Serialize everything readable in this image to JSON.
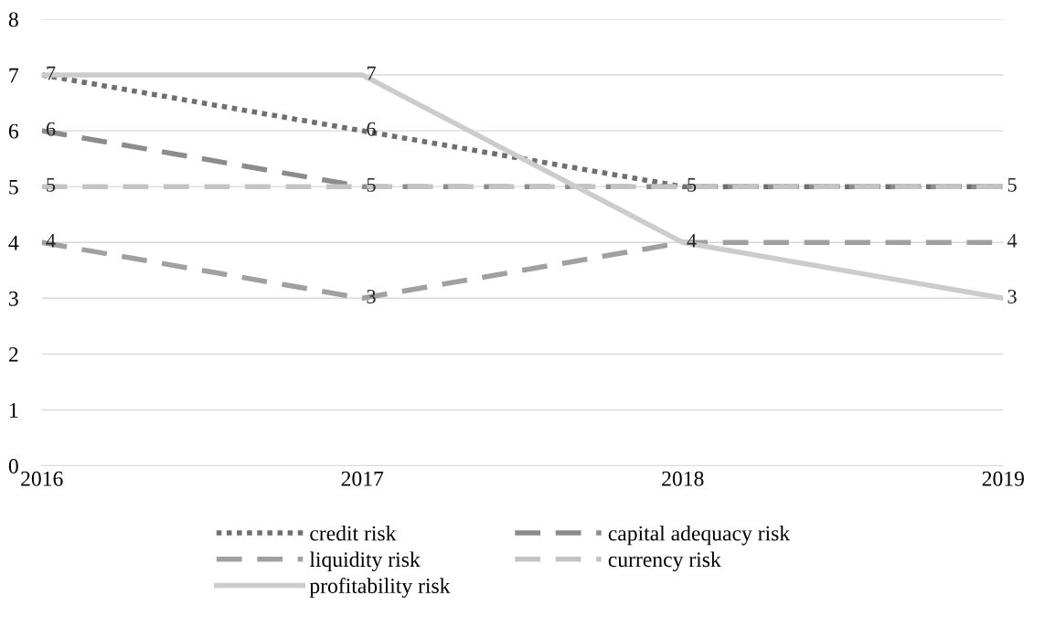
{
  "chart_data": {
    "type": "line",
    "categories": [
      "2016",
      "2017",
      "2018",
      "2019"
    ],
    "series": [
      {
        "name": "credit risk",
        "color": "#6f6f6f",
        "values": [
          7,
          6,
          5,
          5
        ],
        "line_style": "dotted",
        "value_labels": [
          "7",
          "6",
          "5",
          "5"
        ]
      },
      {
        "name": "capital adequacy risk",
        "color": "#8c8c8c",
        "values": [
          6,
          5,
          5,
          5
        ],
        "line_style": "dashed",
        "value_labels": [
          "6",
          "5",
          null,
          null
        ]
      },
      {
        "name": "liquidity risk",
        "color": "#a0a0a0",
        "values": [
          4,
          3,
          4,
          4
        ],
        "line_style": "dashed",
        "value_labels": [
          "4",
          "3",
          "4",
          "4"
        ]
      },
      {
        "name": "currency risk",
        "color": "#c4c4c4",
        "values": [
          5,
          5,
          5,
          5
        ],
        "line_style": "dashed",
        "value_labels": [
          "5",
          null,
          null,
          null
        ]
      },
      {
        "name": "profitability risk",
        "color": "#cccccc",
        "values": [
          7,
          7,
          4,
          3
        ],
        "line_style": "solid",
        "value_labels": [
          null,
          "7",
          null,
          "3"
        ]
      }
    ],
    "ylim": [
      0,
      8
    ],
    "yticks": [
      0,
      1,
      2,
      3,
      4,
      5,
      6,
      7,
      8
    ],
    "grid": "y",
    "legend": "bottom",
    "marker": "none"
  }
}
